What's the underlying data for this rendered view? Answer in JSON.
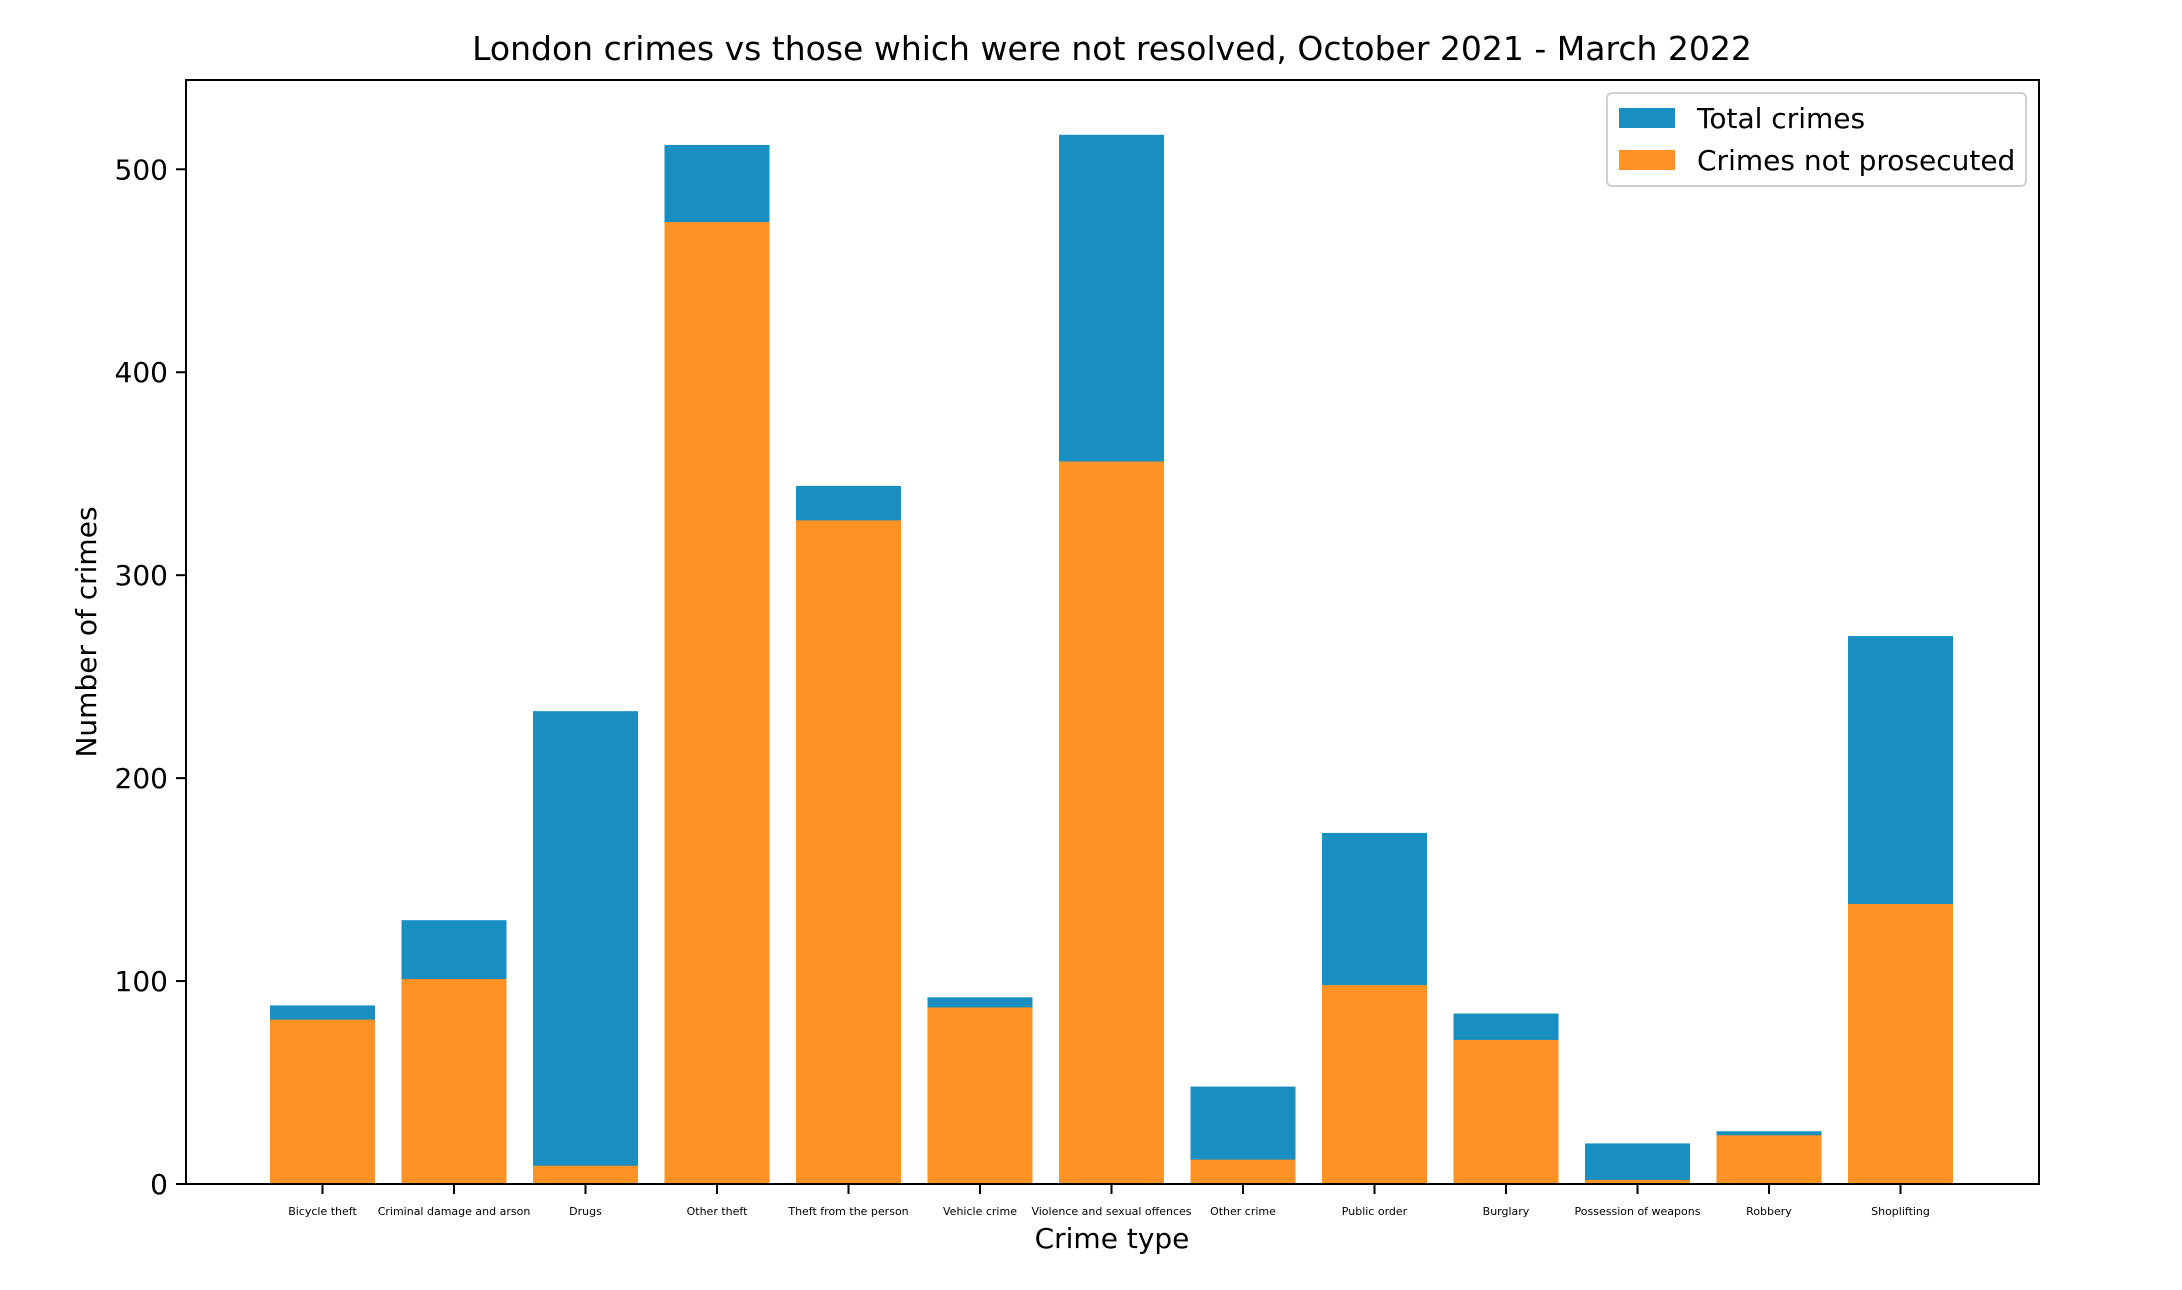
{
  "chart_data": {
    "type": "bar",
    "title": "London crimes vs those which were not resolved, October 2021 - March 2022",
    "xlabel": "Crime type",
    "ylabel": "Number of crimes",
    "ylim": [
      0,
      544
    ],
    "yticks": [
      0,
      100,
      200,
      300,
      400,
      500
    ],
    "grid": false,
    "legend_position": "top-right",
    "categories": [
      "Bicycle theft",
      "Criminal damage and arson",
      "Drugs",
      "Other theft",
      "Theft from the person",
      "Vehicle crime",
      "Violence and sexual offences",
      "Other crime",
      "Public order",
      "Burglary",
      "Possession of weapons",
      "Robbery",
      "Shoplifting"
    ],
    "series": [
      {
        "name": "Total crimes",
        "color": "#188fc0",
        "values": [
          88,
          130,
          233,
          512,
          344,
          92,
          517,
          48,
          173,
          84,
          20,
          26,
          270
        ]
      },
      {
        "name": "Crimes not prosecuted",
        "color": "#ff9224",
        "values": [
          81,
          101,
          9,
          474,
          327,
          87,
          356,
          12,
          98,
          71,
          2,
          24,
          138
        ]
      }
    ]
  }
}
